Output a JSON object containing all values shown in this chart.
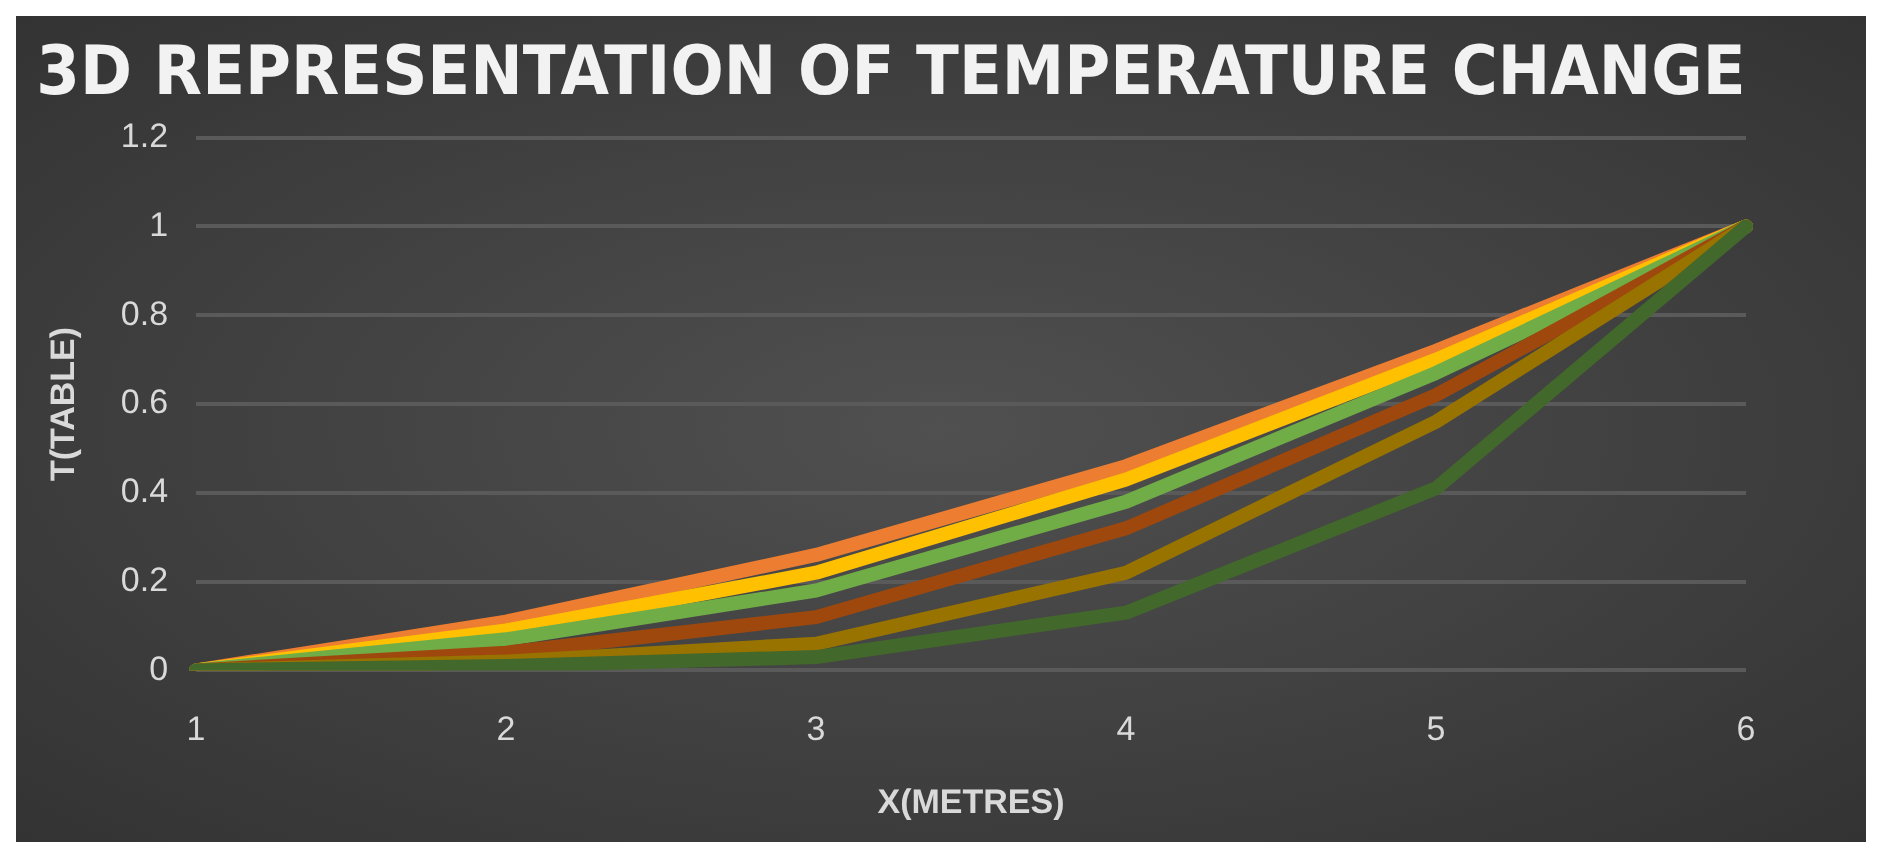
{
  "chart_data": {
    "type": "line",
    "title": "3D REPRESENTATION OF TEMPERATURE CHANGE",
    "xlabel": "X(METRES)",
    "ylabel": "T(TABLE)",
    "categories": [
      "1",
      "2",
      "3",
      "4",
      "5",
      "6"
    ],
    "series": [
      {
        "color": "#ed7d31",
        "values": [
          0,
          0.11,
          0.26,
          0.46,
          0.72,
          1
        ]
      },
      {
        "color": "#ffc000",
        "values": [
          0,
          0.09,
          0.22,
          0.43,
          0.7,
          1
        ]
      },
      {
        "color": "#70ad47",
        "values": [
          0,
          0.07,
          0.18,
          0.38,
          0.67,
          1
        ]
      },
      {
        "color": "#9e480e",
        "values": [
          0,
          0.04,
          0.12,
          0.32,
          0.62,
          1
        ]
      },
      {
        "color": "#997300",
        "values": [
          0,
          0.02,
          0.06,
          0.22,
          0.56,
          1
        ]
      },
      {
        "color": "#43682b",
        "values": [
          0,
          0.01,
          0.03,
          0.13,
          0.41,
          1
        ]
      }
    ],
    "ylim": [
      0,
      1.2
    ],
    "yticks": [
      0,
      0.2,
      0.4,
      0.6,
      0.8,
      1,
      1.2
    ],
    "grid": "y",
    "legend": false,
    "marker": "none",
    "line_style": "solid"
  }
}
